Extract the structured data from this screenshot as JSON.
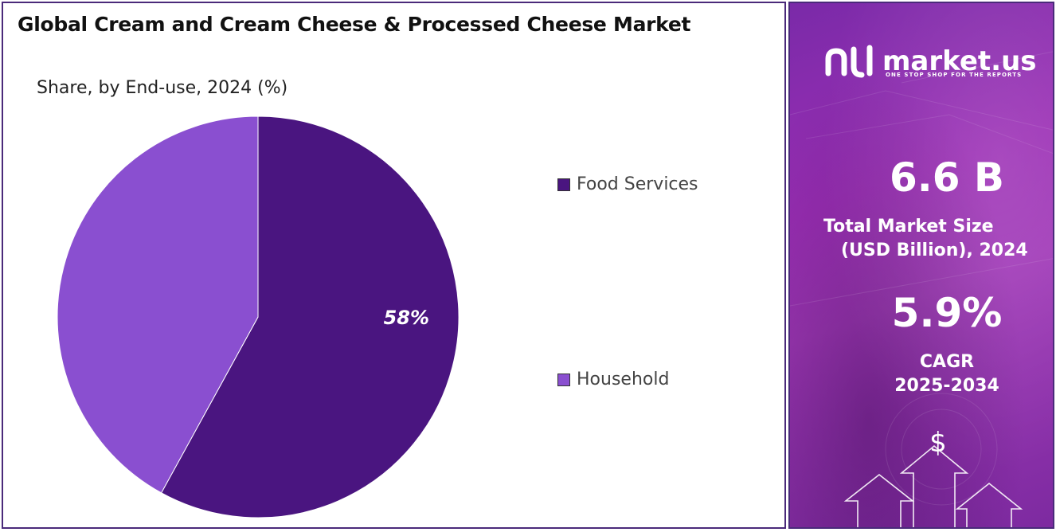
{
  "header": {
    "title": "Global Cream and Cream Cheese & Processed Cheese Market",
    "subtitle": "Share, by End-use, 2024 (%)"
  },
  "chart_data": {
    "type": "pie",
    "title": "Share, by End-use, 2024 (%)",
    "categories": [
      "Food Services",
      "Household"
    ],
    "values": [
      58,
      42
    ],
    "labels_shown": [
      "58%",
      ""
    ],
    "colors": [
      "#4a1580",
      "#8a4fd0"
    ],
    "legend_position": "right"
  },
  "legend": {
    "items": [
      {
        "label": "Food Services",
        "color": "#4a1580"
      },
      {
        "label": "Household",
        "color": "#8a4fd0"
      }
    ]
  },
  "sidebar": {
    "logo_text": "market.us",
    "logo_tagline": "ONE STOP SHOP FOR THE REPORTS",
    "market_size_value": "6.6 B",
    "market_size_label_1": "Total Market Size",
    "market_size_label_2": "(USD Billion), 2024",
    "cagr_value": "5.9%",
    "cagr_label_1": "CAGR",
    "cagr_label_2": "2025-2034",
    "dollar_symbol": "$",
    "icons": [
      "logo-mark-icon",
      "dollar-icon",
      "up-arrow-icon"
    ]
  }
}
